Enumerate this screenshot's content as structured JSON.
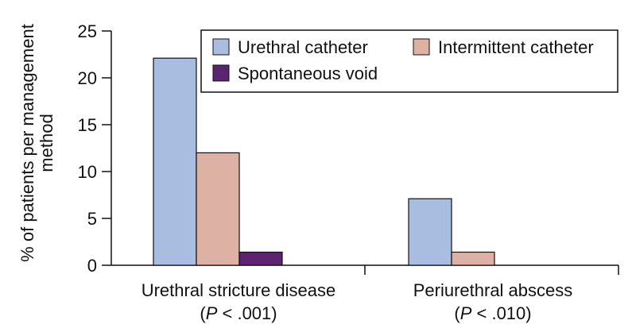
{
  "chart_data": {
    "type": "bar",
    "ylabel": "% of patients per management method",
    "ylabel_lines": [
      "% of patients per management",
      "method"
    ],
    "ylim": [
      0,
      25
    ],
    "yticks": [
      0,
      5,
      10,
      15,
      20,
      25
    ],
    "categories": [
      {
        "line1": "Urethral stricture disease",
        "p_prefix": "(",
        "p_letter": "P",
        "p_suffix": " < .001)"
      },
      {
        "line1": "Periurethral abscess",
        "p_prefix": "(",
        "p_letter": "P",
        "p_suffix": " < .010)"
      }
    ],
    "series": [
      {
        "name": "Urethral catheter",
        "color": "#a9bde0",
        "values": [
          22.1,
          7.1
        ]
      },
      {
        "name": "Intermittent catheter",
        "color": "#ddb1a4",
        "values": [
          12.0,
          1.4
        ]
      },
      {
        "name": "Spontaneous void",
        "color": "#5b2470",
        "values": [
          1.4,
          0
        ]
      }
    ],
    "legend_position": "top-right",
    "grid": false
  }
}
